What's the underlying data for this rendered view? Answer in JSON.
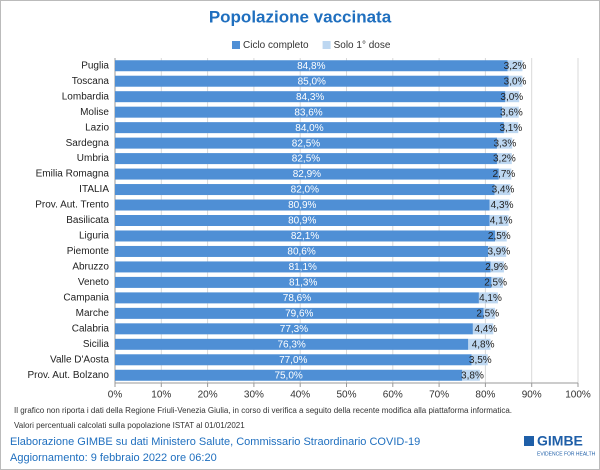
{
  "chart_data": {
    "type": "stacked-bar-horizontal",
    "title": "Popolazione vaccinata",
    "categories": [
      "Puglia",
      "Toscana",
      "Lombardia",
      "Molise",
      "Lazio",
      "Sardegna",
      "Umbria",
      "Emilia Romagna",
      "ITALIA",
      "Prov. Aut. Trento",
      "Basilicata",
      "Liguria",
      "Piemonte",
      "Abruzzo",
      "Veneto",
      "Campania",
      "Marche",
      "Calabria",
      "Sicilia",
      "Valle D'Aosta",
      "Prov. Aut. Bolzano"
    ],
    "series": [
      {
        "name": "Ciclo completo",
        "color": "#4f8fd5",
        "values": [
          84.8,
          85.0,
          84.3,
          83.6,
          84.0,
          82.5,
          82.5,
          82.9,
          82.0,
          80.9,
          80.9,
          82.1,
          80.6,
          81.1,
          81.3,
          78.6,
          79.6,
          77.3,
          76.3,
          77.0,
          75.0
        ],
        "value_labels": [
          "84,8%",
          "85,0%",
          "84,3%",
          "83,6%",
          "84,0%",
          "82,5%",
          "82,5%",
          "82,9%",
          "82,0%",
          "80,9%",
          "80,9%",
          "82,1%",
          "80,6%",
          "81,1%",
          "81,3%",
          "78,6%",
          "79,6%",
          "77,3%",
          "76,3%",
          "77,0%",
          "75,0%"
        ]
      },
      {
        "name": "Solo 1° dose",
        "color": "#bdd7f1",
        "values": [
          3.2,
          3.0,
          3.0,
          3.6,
          3.1,
          3.3,
          3.2,
          2.7,
          3.4,
          4.3,
          4.1,
          2.5,
          3.9,
          2.9,
          2.5,
          4.1,
          2.5,
          4.4,
          4.8,
          3.5,
          3.8
        ],
        "value_labels": [
          "3,2%",
          "3,0%",
          "3,0%",
          "3,6%",
          "3,1%",
          "3,3%",
          "3,2%",
          "2,7%",
          "3,4%",
          "4,3%",
          "4,1%",
          "2,5%",
          "3,9%",
          "2,9%",
          "2,5%",
          "4,1%",
          "2,5%",
          "4,4%",
          "4,8%",
          "3,5%",
          "3,8%"
        ]
      }
    ],
    "xlim": [
      0,
      100
    ],
    "xticks": [
      {
        "value": 0,
        "label": "0%"
      },
      {
        "value": 10,
        "label": "10%"
      },
      {
        "value": 20,
        "label": "20%"
      },
      {
        "value": 30,
        "label": "30%"
      },
      {
        "value": 40,
        "label": "40%"
      },
      {
        "value": 50,
        "label": "50%"
      },
      {
        "value": 60,
        "label": "60%"
      },
      {
        "value": 70,
        "label": "70%"
      },
      {
        "value": 80,
        "label": "80%"
      },
      {
        "value": 90,
        "label": "90%"
      },
      {
        "value": 100,
        "label": "100%"
      }
    ],
    "grid": true,
    "legend": "top",
    "notes": [
      "Il grafico non riporta i dati della Regione Friuli-Venezia Giulia, in corso di verifica a seguito della recente modifica alla piattaforma informatica.",
      "Valori percentuali calcolati sulla popolazione ISTAT al 01/01/2021"
    ],
    "source": "Elaborazione GIMBE su dati Ministero Salute, Commissario Straordinario COVID-19",
    "updated": "Aggiornamento: 9 febbraio 2022 ore 06:20",
    "logo": {
      "name": "GIMBE",
      "tagline": "EVIDENCE FOR HEALTH"
    }
  }
}
